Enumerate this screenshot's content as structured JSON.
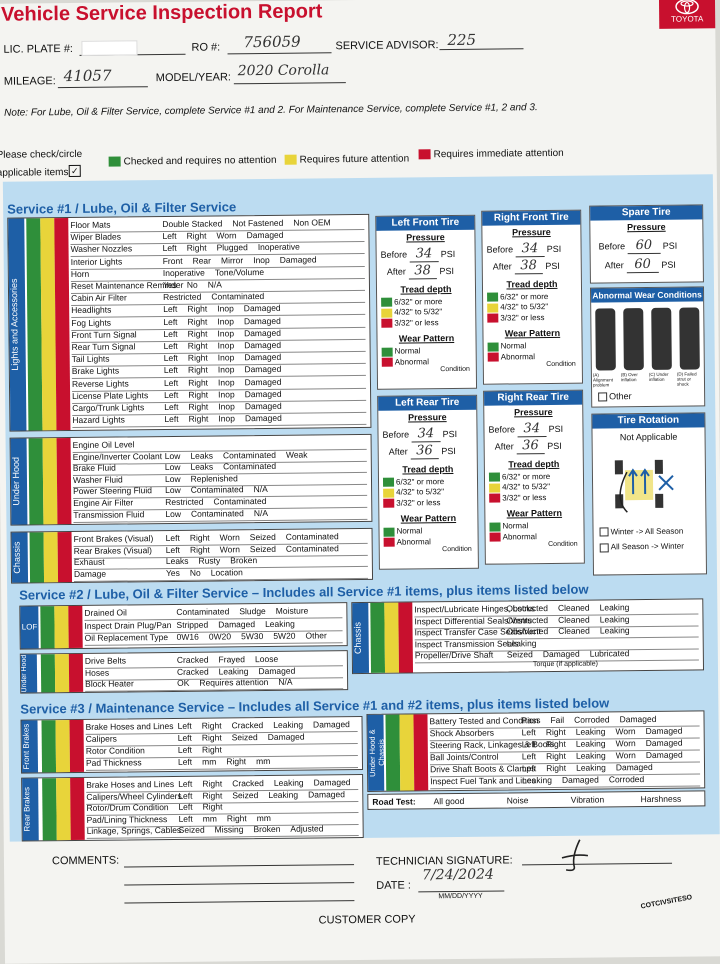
{
  "header": {
    "title": "Vehicle Service Inspection Report",
    "logo_text": "TOYOTA",
    "lic_plate_label": "LIC. PLATE #:",
    "ro_label": "RO #:",
    "ro_value": "756059",
    "advisor_label": "SERVICE ADVISOR:",
    "advisor_value": "225",
    "mileage_label": "MILEAGE:",
    "mileage_value": "41057",
    "model_label": "MODEL/YEAR:",
    "model_value": "2020 Corolla",
    "note": "Note: For Lube, Oil & Filter Service, complete Service #1 and 2. For Maintenance Service, complete Service #1, 2 and 3.",
    "check_line1": "Please check/circle",
    "check_line2": "applicable items",
    "legend": [
      {
        "color": "#2f8f3a",
        "label": "Checked and requires no attention"
      },
      {
        "color": "#e8d43a",
        "label": "Requires future attention"
      },
      {
        "color": "#c8102e",
        "label": "Requires immediate attention"
      }
    ]
  },
  "service1": {
    "title": "Service #1 / Lube, Oil & Filter Service",
    "lights_label": "Lights and Accessories",
    "lights_rows": [
      {
        "item": "Floor Mats",
        "opts": [
          "Double Stacked",
          "Not Fastened",
          "Non OEM"
        ]
      },
      {
        "item": "Wiper Blades",
        "opts": [
          "Left",
          "Right",
          "Worn",
          "Damaged"
        ]
      },
      {
        "item": "Washer Nozzles",
        "opts": [
          "Left",
          "Right",
          "Plugged",
          "Inoperative"
        ]
      },
      {
        "item": "Interior Lights",
        "opts": [
          "Front",
          "Rear",
          "Mirror",
          "Inop",
          "Damaged"
        ]
      },
      {
        "item": "Horn",
        "opts": [
          "Inoperative",
          "Tone/Volume"
        ]
      },
      {
        "item": "Reset Maintenance Reminder",
        "opts": [
          "Yes",
          "No",
          "N/A"
        ]
      },
      {
        "item": "Cabin Air Filter",
        "opts": [
          "Restricted",
          "Contaminated"
        ]
      },
      {
        "item": "Headlights",
        "opts": [
          "Left",
          "Right",
          "Inop",
          "Damaged"
        ]
      },
      {
        "item": "Fog Lights",
        "opts": [
          "Left",
          "Right",
          "Inop",
          "Damaged"
        ]
      },
      {
        "item": "Front Turn Signal",
        "opts": [
          "Left",
          "Right",
          "Inop",
          "Damaged"
        ]
      },
      {
        "item": "Rear Turn Signal",
        "opts": [
          "Left",
          "Right",
          "Inop",
          "Damaged"
        ]
      },
      {
        "item": "Tail Lights",
        "opts": [
          "Left",
          "Right",
          "Inop",
          "Damaged"
        ]
      },
      {
        "item": "Brake Lights",
        "opts": [
          "Left",
          "Right",
          "Inop",
          "Damaged"
        ]
      },
      {
        "item": "Reverse Lights",
        "opts": [
          "Left",
          "Right",
          "Inop",
          "Damaged"
        ]
      },
      {
        "item": "License Plate Lights",
        "opts": [
          "Left",
          "Right",
          "Inop",
          "Damaged"
        ]
      },
      {
        "item": "Cargo/Trunk Lights",
        "opts": [
          "Left",
          "Right",
          "Inop",
          "Damaged"
        ]
      },
      {
        "item": "Hazard Lights",
        "opts": [
          "Left",
          "Right",
          "Inop",
          "Damaged"
        ]
      }
    ],
    "hood_label": "Under Hood",
    "hood_rows": [
      {
        "item": "Engine Oil Level",
        "opts": []
      },
      {
        "item": "Engine/Inverter Coolant",
        "opts": [
          "Low",
          "Leaks",
          "Contaminated",
          "Weak"
        ]
      },
      {
        "item": "Brake Fluid",
        "opts": [
          "Low",
          "Leaks",
          "Contaminated"
        ]
      },
      {
        "item": "Washer Fluid",
        "opts": [
          "Low",
          "Replenished"
        ]
      },
      {
        "item": "Power Steering Fluid",
        "opts": [
          "Low",
          "Contaminated",
          "N/A"
        ]
      },
      {
        "item": "Engine Air Filter",
        "opts": [
          "Restricted",
          "Contaminated"
        ]
      },
      {
        "item": "Transmission Fluid",
        "opts": [
          "Low",
          "Contaminated",
          "N/A"
        ]
      }
    ],
    "chassis_label": "Chassis",
    "chassis_rows": [
      {
        "item": "Front Brakes (Visual)",
        "opts": [
          "Left",
          "Right",
          "Worn",
          "Seized",
          "Contaminated"
        ]
      },
      {
        "item": "Rear Brakes (Visual)",
        "opts": [
          "Left",
          "Right",
          "Worn",
          "Seized",
          "Contaminated"
        ]
      },
      {
        "item": "Exhaust",
        "opts": [
          "Leaks",
          "Rusty",
          "Broken"
        ]
      },
      {
        "item": "Damage",
        "opts": [
          "Yes",
          "No",
          "Location"
        ]
      }
    ]
  },
  "tires": {
    "lf": {
      "title": "Left Front Tire",
      "before": "34",
      "after": "38"
    },
    "rf": {
      "title": "Right Front Tire",
      "before": "34",
      "after": "38"
    },
    "lr": {
      "title": "Left Rear Tire",
      "before": "34",
      "after": "36"
    },
    "rr": {
      "title": "Right Rear Tire",
      "before": "34",
      "after": "36"
    },
    "pressure": "Pressure",
    "before_label": "Before",
    "after_label": "After",
    "psi": "PSI",
    "tread_depth": "Tread depth",
    "tread_opts": [
      "6/32\" or more",
      "4/32\" to 5/32\"",
      "3/32\" or less"
    ],
    "wear_pattern": "Wear Pattern",
    "normal": "Normal",
    "abnormal": "Abnormal",
    "condition": "Condition"
  },
  "spare": {
    "title": "Spare Tire",
    "pressure": "Pressure",
    "before": "60",
    "after": "60"
  },
  "abnormal_wear": {
    "title": "Abnormal Wear Conditions",
    "captions": [
      "(A) Alignment problem",
      "(B) Over inflation",
      "(C) Under inflation",
      "(D) Failed strut or shock"
    ],
    "other": "Other"
  },
  "rotation": {
    "title": "Tire Rotation",
    "not_applicable": "Not Applicable",
    "opt1": "Winter -> All Season",
    "opt2": "All Season -> Winter"
  },
  "service2": {
    "title": "Service #2 / Lube, Oil & Filter Service – Includes all Service #1 items, plus items listed below",
    "lof_label": "LOF",
    "lof_rows": [
      {
        "item": "Drained Oil",
        "opts": [
          "Contaminated",
          "Sludge",
          "Moisture"
        ]
      },
      {
        "item": "Inspect Drain Plug/Pan",
        "opts": [
          "Stripped",
          "Damaged",
          "Leaking"
        ]
      },
      {
        "item": "Oil Replacement Type",
        "opts": [
          "0W16",
          "0W20",
          "5W30",
          "5W20",
          "Other"
        ]
      }
    ],
    "hood_label": "Under Hood",
    "hood_rows": [
      {
        "item": "Drive Belts",
        "opts": [
          "Cracked",
          "Frayed",
          "Loose"
        ]
      },
      {
        "item": "Hoses",
        "opts": [
          "Cracked",
          "Leaking",
          "Damaged"
        ]
      },
      {
        "item": "Block Heater",
        "opts": [
          "OK",
          "Requires attention",
          "N/A"
        ]
      }
    ],
    "chassis_label": "Chassis",
    "chassis_rows": [
      {
        "item": "Inspect/Lubricate Hinges, Locks",
        "opts": [
          "Obstructed",
          "Cleaned",
          "Leaking"
        ]
      },
      {
        "item": "Inspect Differential Seals/Vents",
        "opts": [
          "Obstructed",
          "Cleaned",
          "Leaking"
        ]
      },
      {
        "item": "Inspect Transfer Case Seals/Vent",
        "opts": [
          "Obstructed",
          "Cleaned",
          "Leaking"
        ]
      },
      {
        "item": "Inspect Transmission Seals",
        "opts": [
          "Leaking"
        ]
      },
      {
        "item": "Propeller/Drive Shaft",
        "opts": [
          "Seized",
          "Damaged",
          "Lubricated"
        ]
      }
    ],
    "torque": "Torque (if applicable)"
  },
  "service3": {
    "title": "Service #3 / Maintenance Service – Includes all Service #1 and #2 items, plus items listed below",
    "front_label": "Front Brakes",
    "front_rows": [
      {
        "item": "Brake Hoses and Lines",
        "opts": [
          "Left",
          "Right",
          "Cracked",
          "Leaking",
          "Damaged"
        ]
      },
      {
        "item": "Calipers",
        "opts": [
          "Left",
          "Right",
          "Seized",
          "Damaged"
        ]
      },
      {
        "item": "Rotor Condition",
        "opts": [
          "Left",
          "Right"
        ]
      },
      {
        "item": "Pad Thickness",
        "opts": [
          "Left",
          "mm",
          "Right",
          "mm"
        ]
      }
    ],
    "rear_label": "Rear Brakes",
    "rear_rows": [
      {
        "item": "Brake Hoses and Lines",
        "opts": [
          "Left",
          "Right",
          "Cracked",
          "Leaking",
          "Damaged"
        ]
      },
      {
        "item": "Calipers/Wheel Cylinders",
        "opts": [
          "Left",
          "Right",
          "Seized",
          "Leaking",
          "Damaged"
        ]
      },
      {
        "item": "Rotor/Drum Condition",
        "opts": [
          "Left",
          "Right"
        ]
      },
      {
        "item": "Pad/Lining Thickness",
        "opts": [
          "Left",
          "mm",
          "Right",
          "mm"
        ]
      },
      {
        "item": "Linkage, Springs, Cables",
        "opts": [
          "Seized",
          "Missing",
          "Broken",
          "Adjusted"
        ]
      }
    ],
    "uh_label": "Under Hood & Chassis",
    "uh_rows": [
      {
        "item": "Battery Tested and Condition",
        "opts": [
          "Pass",
          "Fail",
          "Corroded",
          "Damaged"
        ]
      },
      {
        "item": "Shock Absorbers",
        "opts": [
          "Left",
          "Right",
          "Leaking",
          "Worn",
          "Damaged"
        ]
      },
      {
        "item": "Steering Rack, Linkages & Boots",
        "opts": [
          "Left",
          "Right",
          "Leaking",
          "Worn",
          "Damaged"
        ]
      },
      {
        "item": "Ball Joints/Control",
        "opts": [
          "Left",
          "Right",
          "Leaking",
          "Worn",
          "Damaged"
        ]
      },
      {
        "item": "Drive Shaft Boots & Clamps",
        "opts": [
          "Left",
          "Right",
          "Leaking",
          "Damaged"
        ]
      },
      {
        "item": "Inspect Fuel Tank and Lines",
        "opts": [
          "Leaking",
          "Damaged",
          "Corroded"
        ]
      }
    ],
    "road_test": "Road Test:",
    "road_opts": [
      "All good",
      "Noise",
      "Vibration",
      "Harshness"
    ]
  },
  "footer": {
    "comments": "COMMENTS:",
    "tech_sig": "TECHNICIAN SIGNATURE:",
    "date_label": "DATE :",
    "date_value": "7/24/2024",
    "date_fmt": "MM/DD/YYYY",
    "customer_copy": "CUSTOMER COPY",
    "form_code": "COTCIVSITESO"
  }
}
